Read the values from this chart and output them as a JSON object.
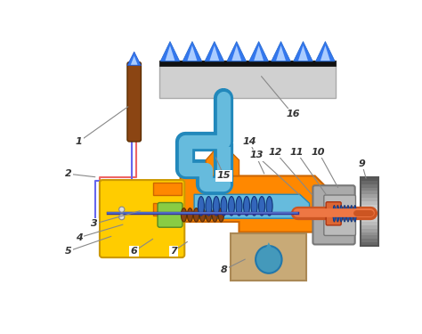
{
  "bg_color": "#ffffff",
  "burner_color": "#d0d0d0",
  "burner_top_color": "#111111",
  "flame_color_outer": "#3377ee",
  "flame_color_inner": "#aaccff",
  "thermocouple_color": "#8B4513",
  "tube_color": "#66bbdd",
  "tube_dark_color": "#2288bb",
  "valve_orange": "#ff8800",
  "valve_orange_dark": "#cc6600",
  "valve_yellow": "#ffcc00",
  "valve_yellow_dark": "#cc9900",
  "spring_blue": "#2255aa",
  "spring_dark": "#113377",
  "green_tip": "#88cc44",
  "brown_spring": "#8B4513",
  "gray_housing": "#aaaaaa",
  "gray_dark": "#777777",
  "knob_light": "#cccccc",
  "knob_dark": "#444444",
  "rod_orange": "#cc5522",
  "rod_dark": "#883311",
  "sand_color": "#c8aa77",
  "sand_dark": "#aa8855",
  "blue_drop": "#4499bb",
  "wire_red": "#ee6666",
  "wire_blue": "#6666ee",
  "label_fontsize": 8,
  "label_color": "#333333",
  "line_color": "#888888"
}
